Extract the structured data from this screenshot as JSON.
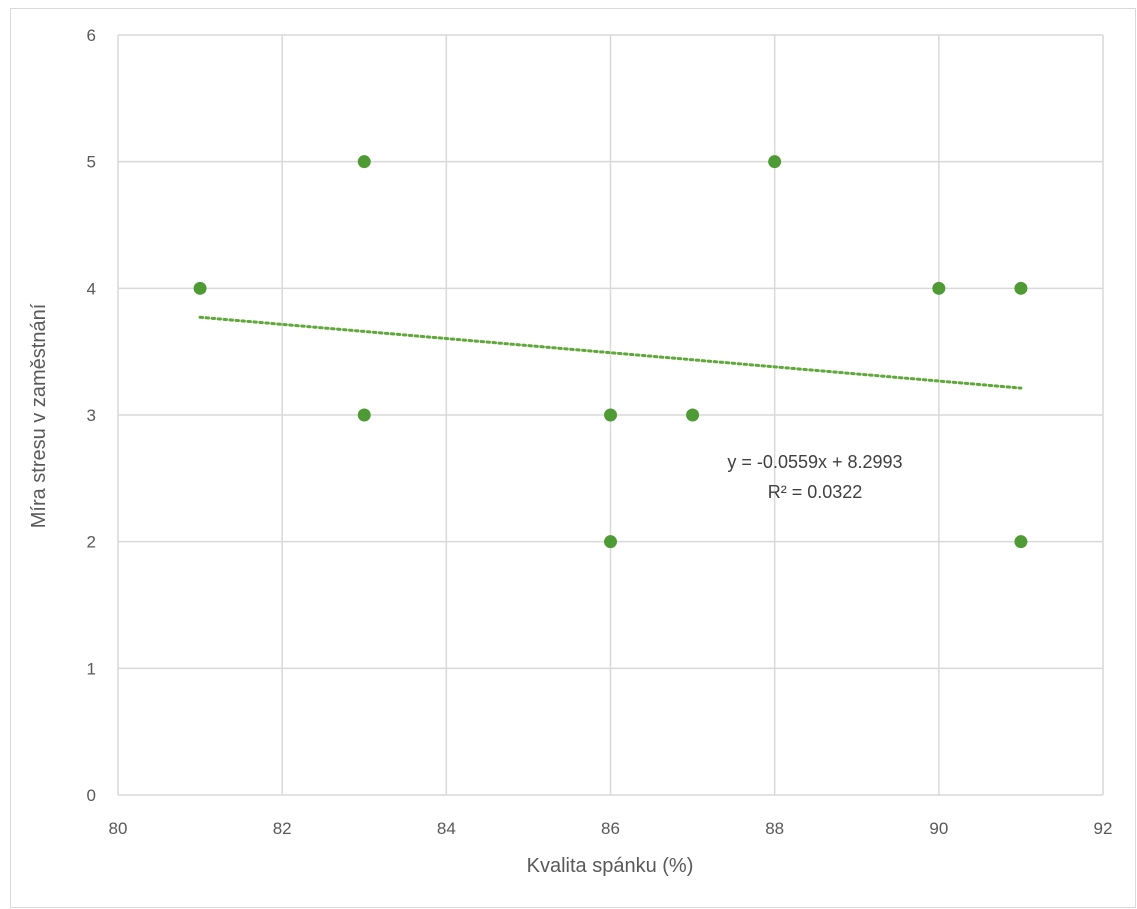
{
  "chart_data": {
    "type": "scatter",
    "title": "",
    "xlabel": "Kvalita spánku (%)",
    "ylabel": "Míra stresu v zaměstnání",
    "xlim": [
      80,
      92
    ],
    "ylim": [
      0,
      6
    ],
    "xticks": [
      80,
      82,
      84,
      86,
      88,
      90,
      92
    ],
    "yticks": [
      0,
      1,
      2,
      3,
      4,
      5,
      6
    ],
    "grid": true,
    "legend": "none",
    "series": [
      {
        "points": [
          {
            "x": 81,
            "y": 4
          },
          {
            "x": 83,
            "y": 5
          },
          {
            "x": 83,
            "y": 3
          },
          {
            "x": 86,
            "y": 3
          },
          {
            "x": 86,
            "y": 2
          },
          {
            "x": 87,
            "y": 3
          },
          {
            "x": 88,
            "y": 5
          },
          {
            "x": 90,
            "y": 4
          },
          {
            "x": 91,
            "y": 4
          },
          {
            "x": 91,
            "y": 2
          }
        ],
        "color": "#4e9a35"
      }
    ],
    "trendline": {
      "type": "linear",
      "slope": -0.0559,
      "intercept": 8.2993,
      "x_range": [
        81,
        91
      ],
      "style": "dotted",
      "color": "#5fa83a"
    },
    "annotations": [
      "y = -0.0559x + 8.2993",
      "R² = 0.0322"
    ],
    "colors": {
      "grid": "#d9d9d9",
      "text": "#595959"
    }
  }
}
